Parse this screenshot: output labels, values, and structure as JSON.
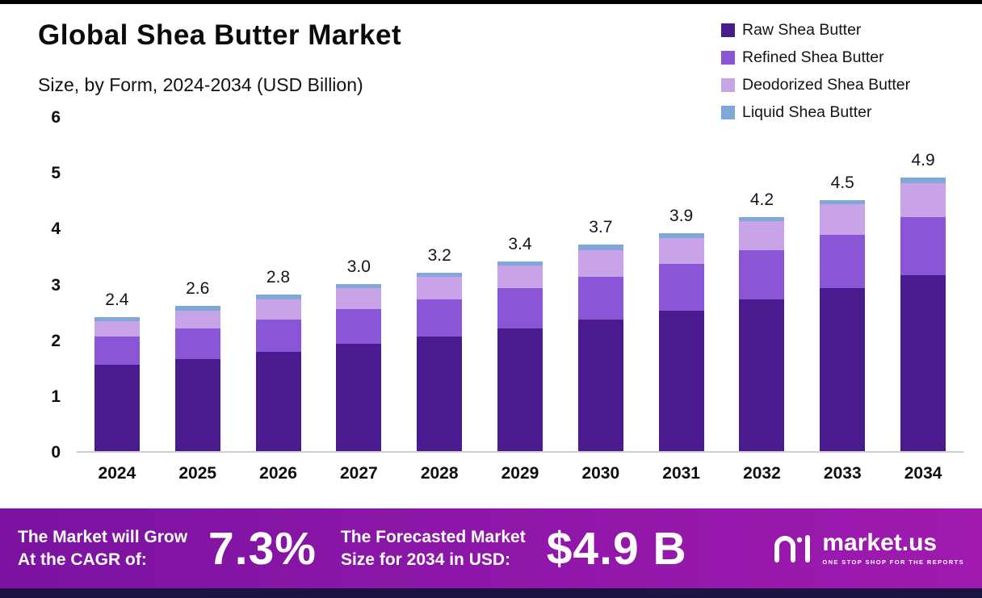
{
  "header": {
    "title": "Global Shea Butter Market",
    "subtitle": "Size, by Form, 2024-2034 (USD Billion)"
  },
  "legend": [
    {
      "label": "Raw Shea Butter",
      "color": "#4a1a8f"
    },
    {
      "label": "Refined Shea Butter",
      "color": "#8a56d6"
    },
    {
      "label": "Deodorized Shea Butter",
      "color": "#c9a3e8"
    },
    {
      "label": "Liquid Shea Butter",
      "color": "#7fa8d9"
    }
  ],
  "chart_data": {
    "type": "bar",
    "stacked": true,
    "title": "Global Shea Butter Market Size, by Form, 2024-2034 (USD Billion)",
    "xlabel": "",
    "ylabel": "USD Billion",
    "ylim": [
      0,
      6
    ],
    "yticks": [
      0,
      1,
      2,
      3,
      4,
      5,
      6
    ],
    "grid": false,
    "legend_position": "top-right",
    "categories": [
      "2024",
      "2025",
      "2026",
      "2027",
      "2028",
      "2029",
      "2030",
      "2031",
      "2032",
      "2033",
      "2034"
    ],
    "series": [
      {
        "name": "Raw Shea Butter",
        "key": "raw",
        "color": "#4a1a8f",
        "values": [
          1.55,
          1.65,
          1.78,
          1.92,
          2.05,
          2.2,
          2.35,
          2.52,
          2.72,
          2.92,
          3.15
        ]
      },
      {
        "name": "Refined Shea Butter",
        "key": "refined",
        "color": "#8a56d6",
        "values": [
          0.5,
          0.55,
          0.58,
          0.62,
          0.67,
          0.72,
          0.78,
          0.83,
          0.88,
          0.95,
          1.05
        ]
      },
      {
        "name": "Deodorized Shea Butter",
        "key": "deodorized",
        "color": "#c9a3e8",
        "values": [
          0.28,
          0.32,
          0.36,
          0.38,
          0.4,
          0.4,
          0.47,
          0.47,
          0.52,
          0.55,
          0.6
        ]
      },
      {
        "name": "Liquid Shea Butter",
        "key": "liquid",
        "color": "#7fa8d9",
        "values": [
          0.07,
          0.08,
          0.08,
          0.08,
          0.08,
          0.08,
          0.1,
          0.08,
          0.08,
          0.08,
          0.1
        ]
      }
    ],
    "totals": [
      2.4,
      2.6,
      2.8,
      3.0,
      3.2,
      3.4,
      3.7,
      3.9,
      4.2,
      4.5,
      4.9
    ]
  },
  "footer": {
    "growth_line1": "The Market will Grow",
    "growth_line2": "At the CAGR of:",
    "cagr": "7.3%",
    "forecast_line1": "The Forecasted Market",
    "forecast_line2": "Size for 2034 in USD:",
    "forecast_value": "$4.9 B",
    "brand": "market.us",
    "tagline": "ONE STOP SHOP FOR THE REPORTS"
  }
}
